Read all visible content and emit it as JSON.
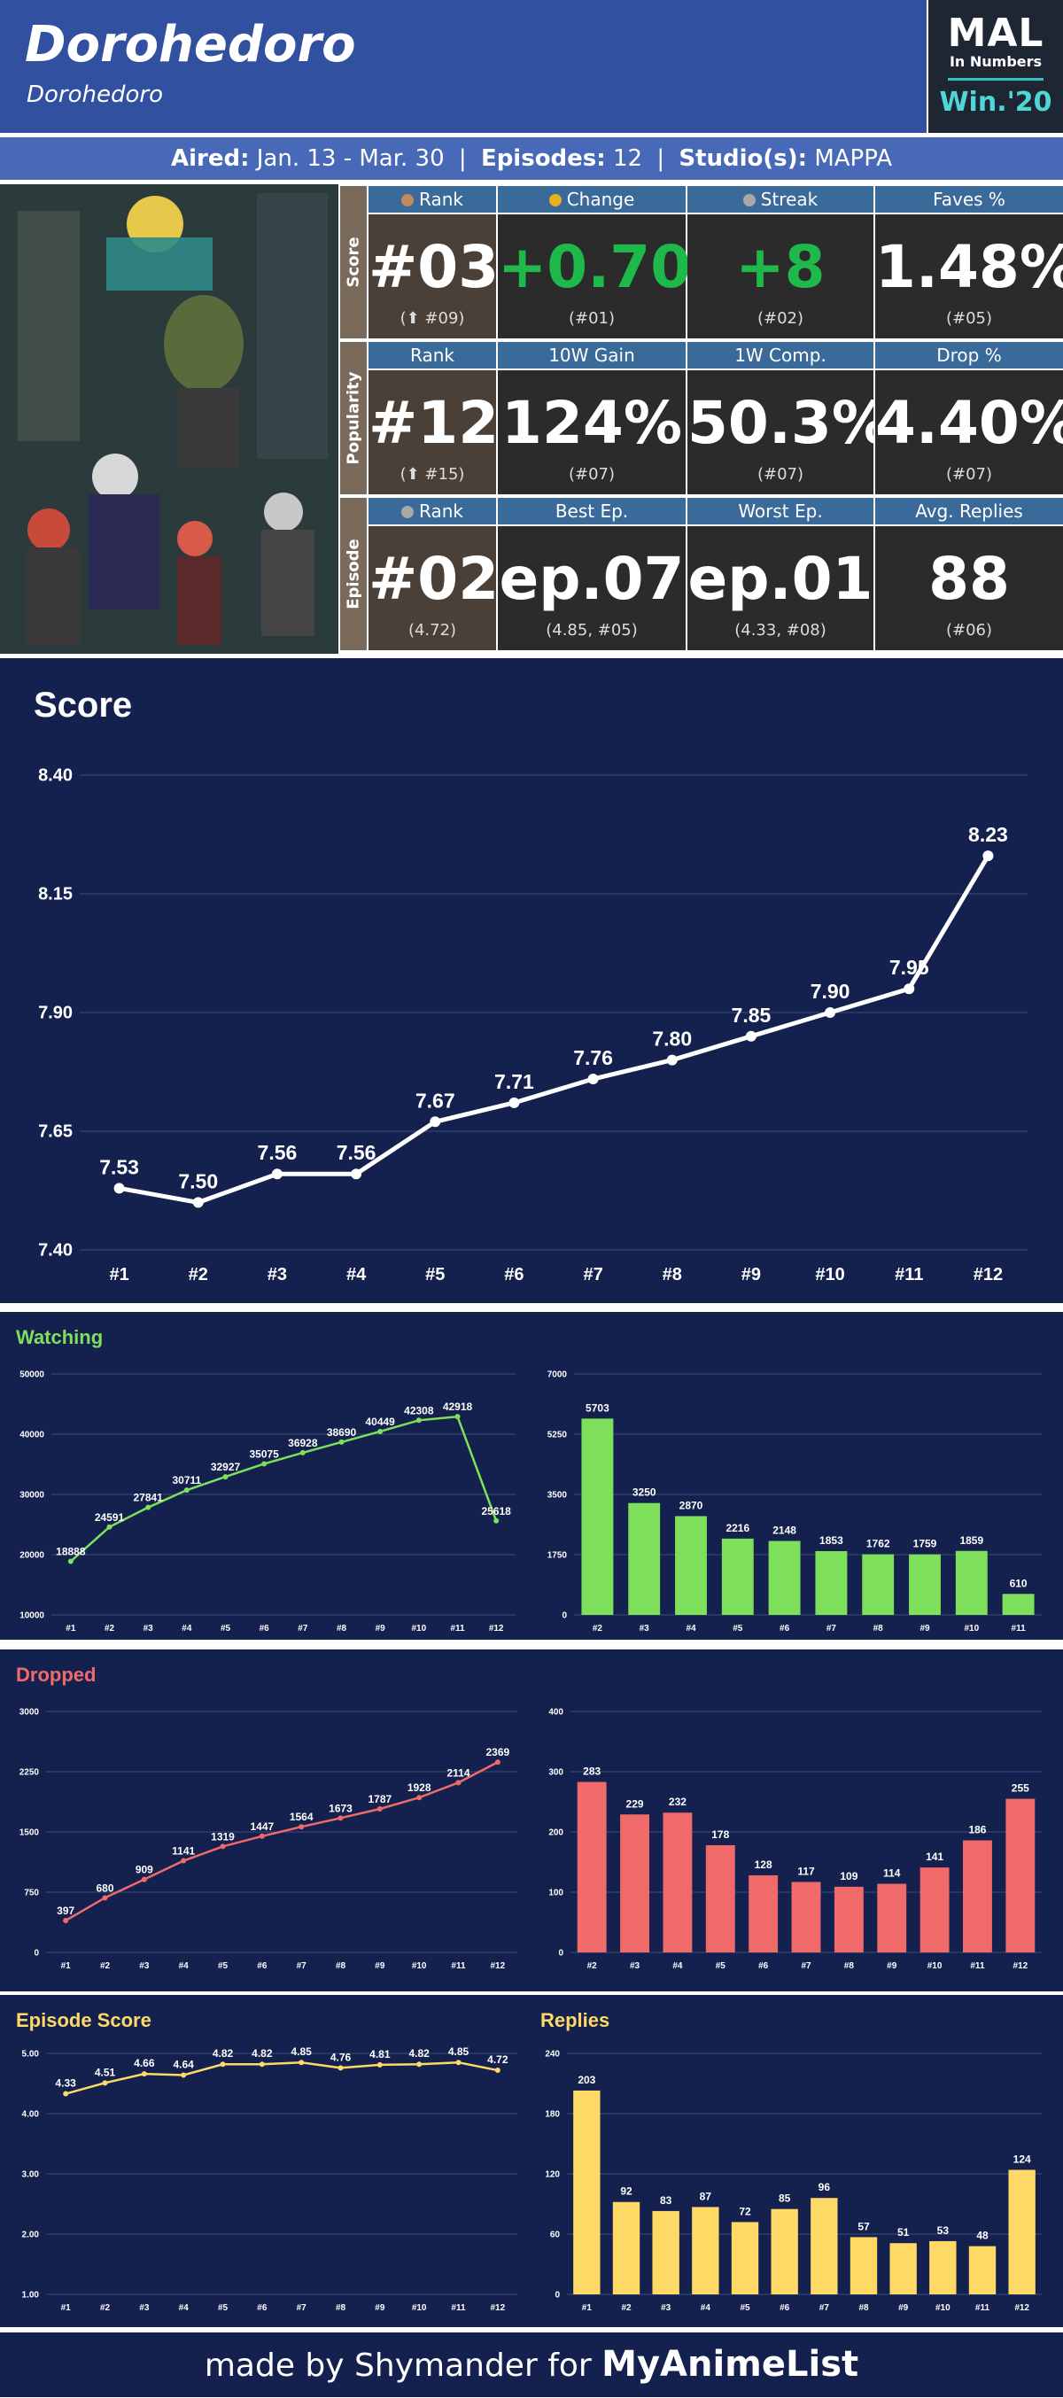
{
  "header": {
    "title": "Dorohedoro",
    "subtitle": "Dorohedoro",
    "mal_logo": "MAL",
    "mal_sub": "In Numbers",
    "season": "Win.'20"
  },
  "aired": {
    "aired_label": "Aired:",
    "aired_value": "Jan. 13 - Mar. 30",
    "episodes_label": "Episodes:",
    "episodes_value": "12",
    "studio_label": "Studio(s):",
    "studio_value": "MAPPA",
    "sep": "|"
  },
  "stats": {
    "rows": [
      {
        "label": "Score",
        "cells": [
          {
            "header": "Rank",
            "medal": "#c48a5c",
            "value": "#03",
            "sub": "(⬆ #09)"
          },
          {
            "header": "Change",
            "medal": "#e8b020",
            "value": "+0.70",
            "sub": "(#01)",
            "green": true
          },
          {
            "header": "Streak",
            "medal": "#a8a8a8",
            "value": "+8",
            "sub": "(#02)",
            "green": true
          },
          {
            "header": "Faves %",
            "value": "1.48%",
            "sub": "(#05)"
          }
        ]
      },
      {
        "label": "Popularity",
        "cells": [
          {
            "header": "Rank",
            "value": "#12",
            "sub": "(⬆ #15)"
          },
          {
            "header": "10W Gain",
            "value": "124%",
            "sub": "(#07)"
          },
          {
            "header": "1W Comp.",
            "value": "50.3%",
            "sub": "(#07)"
          },
          {
            "header": "Drop %",
            "value": "4.40%",
            "sub": "(#07)"
          }
        ]
      },
      {
        "label": "Episode",
        "cells": [
          {
            "header": "Rank",
            "medal": "#a8a8a8",
            "value": "#02",
            "sub": "(4.72)"
          },
          {
            "header": "Best Ep.",
            "value": "ep.07",
            "sub": "(4.85, #05)"
          },
          {
            "header": "Worst Ep.",
            "value": "ep.01",
            "sub": "(4.33, #08)"
          },
          {
            "header": "Avg. Replies",
            "value": "88",
            "sub": "(#06)"
          }
        ]
      }
    ]
  },
  "chart_data": [
    {
      "type": "line",
      "title": "Score",
      "x": [
        "#1",
        "#2",
        "#3",
        "#4",
        "#5",
        "#6",
        "#7",
        "#8",
        "#9",
        "#10",
        "#11",
        "#12"
      ],
      "values": [
        7.53,
        7.5,
        7.56,
        7.56,
        7.67,
        7.71,
        7.76,
        7.8,
        7.85,
        7.9,
        7.95,
        8.23
      ],
      "labels": [
        "7.53",
        "7.50",
        "7.56",
        "7.56",
        "7.67",
        "7.71",
        "7.76",
        "7.80",
        "7.85",
        "7.90",
        "7.95",
        "8.23"
      ],
      "yticks": [
        "7.40",
        "7.65",
        "7.90",
        "8.15",
        "8.40"
      ],
      "ylim": [
        7.4,
        8.4
      ],
      "color": "#ffffff"
    },
    {
      "type": "line",
      "title": "Watching",
      "x": [
        "#1",
        "#2",
        "#3",
        "#4",
        "#5",
        "#6",
        "#7",
        "#8",
        "#9",
        "#10",
        "#11",
        "#12"
      ],
      "values": [
        18888,
        24591,
        27841,
        30711,
        32927,
        35075,
        36928,
        38690,
        40449,
        42308,
        42918,
        25618
      ],
      "yticks": [
        "10000",
        "20000",
        "30000",
        "40000",
        "50000"
      ],
      "ylim": [
        10000,
        50000
      ],
      "color": "#7ee05a"
    },
    {
      "type": "bar",
      "x": [
        "#2",
        "#3",
        "#4",
        "#5",
        "#6",
        "#7",
        "#8",
        "#9",
        "#10",
        "#11"
      ],
      "values": [
        5703,
        3250,
        2870,
        2216,
        2148,
        1853,
        1762,
        1759,
        1859,
        610
      ],
      "yticks": [
        "0",
        "1750",
        "3500",
        "5250",
        "7000"
      ],
      "ylim": [
        0,
        7000
      ],
      "color": "#7ee05a"
    },
    {
      "type": "line",
      "title": "Dropped",
      "x": [
        "#1",
        "#2",
        "#3",
        "#4",
        "#5",
        "#6",
        "#7",
        "#8",
        "#9",
        "#10",
        "#11",
        "#12"
      ],
      "values": [
        397,
        680,
        909,
        1141,
        1319,
        1447,
        1564,
        1673,
        1787,
        1928,
        2114,
        2369
      ],
      "yticks": [
        "0",
        "750",
        "1500",
        "2250",
        "3000"
      ],
      "ylim": [
        0,
        3000
      ],
      "color": "#f06a6a"
    },
    {
      "type": "bar",
      "x": [
        "#2",
        "#3",
        "#4",
        "#5",
        "#6",
        "#7",
        "#8",
        "#9",
        "#10",
        "#11",
        "#12"
      ],
      "values": [
        283,
        229,
        232,
        178,
        128,
        117,
        109,
        114,
        141,
        186,
        255
      ],
      "yticks": [
        "0",
        "100",
        "200",
        "300",
        "400"
      ],
      "ylim": [
        0,
        400
      ],
      "color": "#f06a6a"
    },
    {
      "type": "line",
      "title": "Episode Score",
      "x": [
        "#1",
        "#2",
        "#3",
        "#4",
        "#5",
        "#6",
        "#7",
        "#8",
        "#9",
        "#10",
        "#11",
        "#12"
      ],
      "values": [
        4.33,
        4.51,
        4.66,
        4.64,
        4.82,
        4.82,
        4.85,
        4.76,
        4.81,
        4.82,
        4.85,
        4.72
      ],
      "labels": [
        "4.33",
        "4.51",
        "4.66",
        "4.64",
        "4.82",
        "4.82",
        "4.85",
        "4.76",
        "4.81",
        "4.82",
        "4.85",
        "4.72"
      ],
      "yticks": [
        "1.00",
        "2.00",
        "3.00",
        "4.00",
        "5.00"
      ],
      "ylim": [
        1,
        5
      ],
      "color": "#ffd966"
    },
    {
      "type": "bar",
      "title": "Replies",
      "x": [
        "#1",
        "#2",
        "#3",
        "#4",
        "#5",
        "#6",
        "#7",
        "#8",
        "#9",
        "#10",
        "#11",
        "#12"
      ],
      "values": [
        203,
        92,
        83,
        87,
        72,
        85,
        96,
        57,
        51,
        53,
        48,
        124
      ],
      "yticks": [
        "0",
        "60",
        "120",
        "180",
        "240"
      ],
      "ylim": [
        0,
        240
      ],
      "color": "#ffd966"
    }
  ],
  "footer": {
    "made_by": "made by Shymander for",
    "brand": "MyAnimeList"
  }
}
